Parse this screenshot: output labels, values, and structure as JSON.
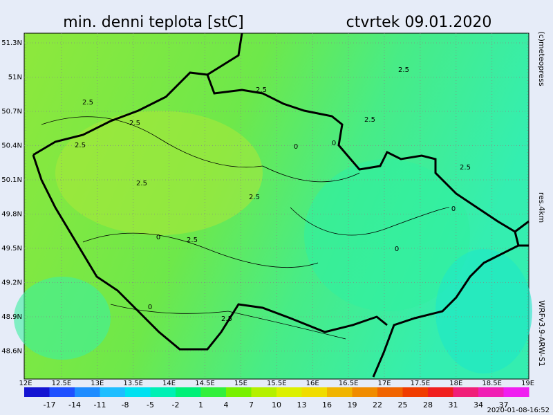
{
  "header": {
    "title": "min. denni teplota [stC]",
    "date": "ctvrtek 09.01.2020"
  },
  "side": {
    "copyright": "(c)meteopress",
    "resolution": "res.4km",
    "model": "WRFv3.9-ARW-S1"
  },
  "footer": {
    "timestamp": "2020-01-08-16:52"
  },
  "map": {
    "lat_labels": [
      "51.3N",
      "51N",
      "50.7N",
      "50.4N",
      "50.1N",
      "49.8N",
      "49.5N",
      "49.2N",
      "48.9N",
      "48.6N"
    ],
    "lon_labels": [
      "12E",
      "12.5E",
      "13E",
      "13.5E",
      "14E",
      "14.5E",
      "15E",
      "15.5E",
      "16E",
      "16.5E",
      "17E",
      "17.5E",
      "18E",
      "18.5E",
      "19E"
    ],
    "contour_labels": [
      "2.5",
      "2.5",
      "2.5",
      "2.5",
      "2.5",
      "2.5",
      "2.5",
      "2.5",
      "2.5",
      "2.5",
      "0",
      "0",
      "0",
      "0",
      "0",
      "0",
      "2.5"
    ]
  },
  "legend": {
    "labels": [
      "-17",
      "-14",
      "-11",
      "-8",
      "-5",
      "-2",
      "1",
      "4",
      "7",
      "10",
      "13",
      "16",
      "19",
      "22",
      "25",
      "28",
      "31",
      "34",
      "37"
    ],
    "colors": [
      "#1414d2",
      "#1e50ff",
      "#1e8cff",
      "#1ebeff",
      "#00e1f0",
      "#00f0b4",
      "#00f078",
      "#32f03c",
      "#78f000",
      "#b4f000",
      "#dcf000",
      "#f0dc00",
      "#f0b400",
      "#f08c00",
      "#f06400",
      "#f03c00",
      "#f01e1e",
      "#f01e78",
      "#f01eb4",
      "#f01ef0"
    ]
  }
}
